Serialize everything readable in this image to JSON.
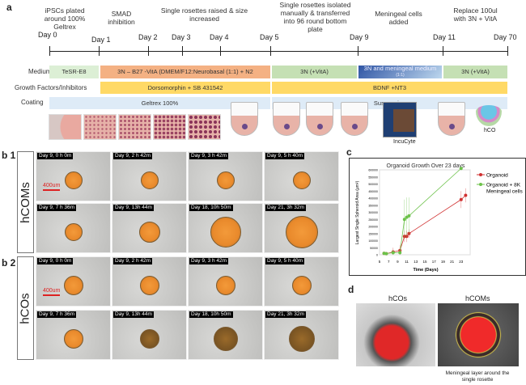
{
  "panel_a": {
    "label": "a",
    "headers": [
      "iPSCs  plated around 100% Geltrex",
      "SMAD inhibition",
      "Single rosettes raised & size increased",
      "Single rosettes isolated manually & transferred into 96 round bottom plate",
      "Meningeal cells added",
      "Replace 100ul with 3N + VitA"
    ],
    "days": [
      "Day 0",
      "Day 1",
      "Day 2",
      "Day 3",
      "Day 4",
      "Day 5",
      "Day 9",
      "Day 11",
      "Day 70"
    ],
    "rows": {
      "medium": "Medium",
      "growth": "Growth Factors/Inhibitors",
      "coating": "Coating"
    },
    "medium": [
      "TeSR-E8",
      "3N – B27  -VitA (DMEM/F12:Neurobasal (1:1) + N2",
      "3N (+VitA)",
      "3N and meningeal medium",
      "(1:1)",
      "3N (+VitA)"
    ],
    "growth": [
      "Dorsomorphin + SB 431542",
      "BDNF +NT3"
    ],
    "coating": [
      "Geltrex 100%",
      "Suspension"
    ],
    "image_labels": {
      "incucyte": "IncuCyte",
      "hco": "hCO"
    },
    "colors": {
      "tesr": "#dcefd5",
      "orange": "#f4b183",
      "green": "#c5e0b4",
      "blue": "#4472c4",
      "yellow": "#ffd966",
      "coat": "#deebf7"
    }
  },
  "panel_b": {
    "b1": {
      "label": "b 1",
      "group": "hCOMs",
      "scale": "400um"
    },
    "b2": {
      "label": "b 2",
      "group": "hCOs",
      "scale": "400um"
    },
    "timestamps_b1": [
      "Day 9, 0 h 0m",
      "Day 9, 2 h 42m",
      "Day 9, 3 h 42m",
      "Day 9, 5 h 40m",
      "Day 9, 7 h 36m",
      "Day 9, 13h 44m",
      "Day 18, 10h 50m",
      "Day 21, 3h 32m"
    ],
    "timestamps_b2": [
      "Day 9, 0 h 0m",
      "Day 9, 2 h 42m",
      "Day 9, 3 h 42m",
      "Day 9, 5 h 40m",
      "Day 9, 7 h 36m",
      "Day 9, 13h 44m",
      "Day 18, 10h 50m",
      "Day 21, 3h 32m"
    ]
  },
  "chart_data": {
    "label": "c",
    "type": "line",
    "title": "Organoid Growth Over 23 days",
    "xlabel": "Time (Days)",
    "ylabel": "Largest Single Spheroid Area (μm²)",
    "xlim": [
      5,
      25
    ],
    "ylim": [
      0,
      600000
    ],
    "xticks": [
      5,
      7,
      9,
      11,
      13,
      15,
      17,
      19,
      21,
      23
    ],
    "yticks": [
      0,
      50000,
      100000,
      150000,
      200000,
      250000,
      300000,
      350000,
      400000,
      450000,
      500000,
      550000,
      600000
    ],
    "legend_position": "right",
    "series": [
      {
        "name": "Organoid",
        "color": "#d03030",
        "x": [
          6,
          6.5,
          8,
          9.5,
          10.5,
          11,
          11.5,
          23,
          24
        ],
        "y": [
          10000,
          8000,
          20000,
          30000,
          130000,
          130000,
          150000,
          390000,
          420000
        ],
        "err": [
          8000,
          8000,
          30000,
          40000,
          40000,
          40000,
          30000,
          60000,
          50000
        ]
      },
      {
        "name": "Organoid + 8K Meningeal cells",
        "color": "#6cc24a",
        "x": [
          6,
          6.5,
          8,
          9.5,
          10.5,
          11,
          11.5,
          23
        ],
        "y": [
          10000,
          8000,
          15000,
          15000,
          250000,
          265000,
          275000,
          610000
        ],
        "err": [
          10000,
          8000,
          20000,
          20000,
          140000,
          140000,
          130000,
          0
        ]
      }
    ]
  },
  "panel_d": {
    "label": "d",
    "left_title": "hCOs",
    "right_title": "hCOMs",
    "caption": "Meningeal layer around the single rosette"
  }
}
